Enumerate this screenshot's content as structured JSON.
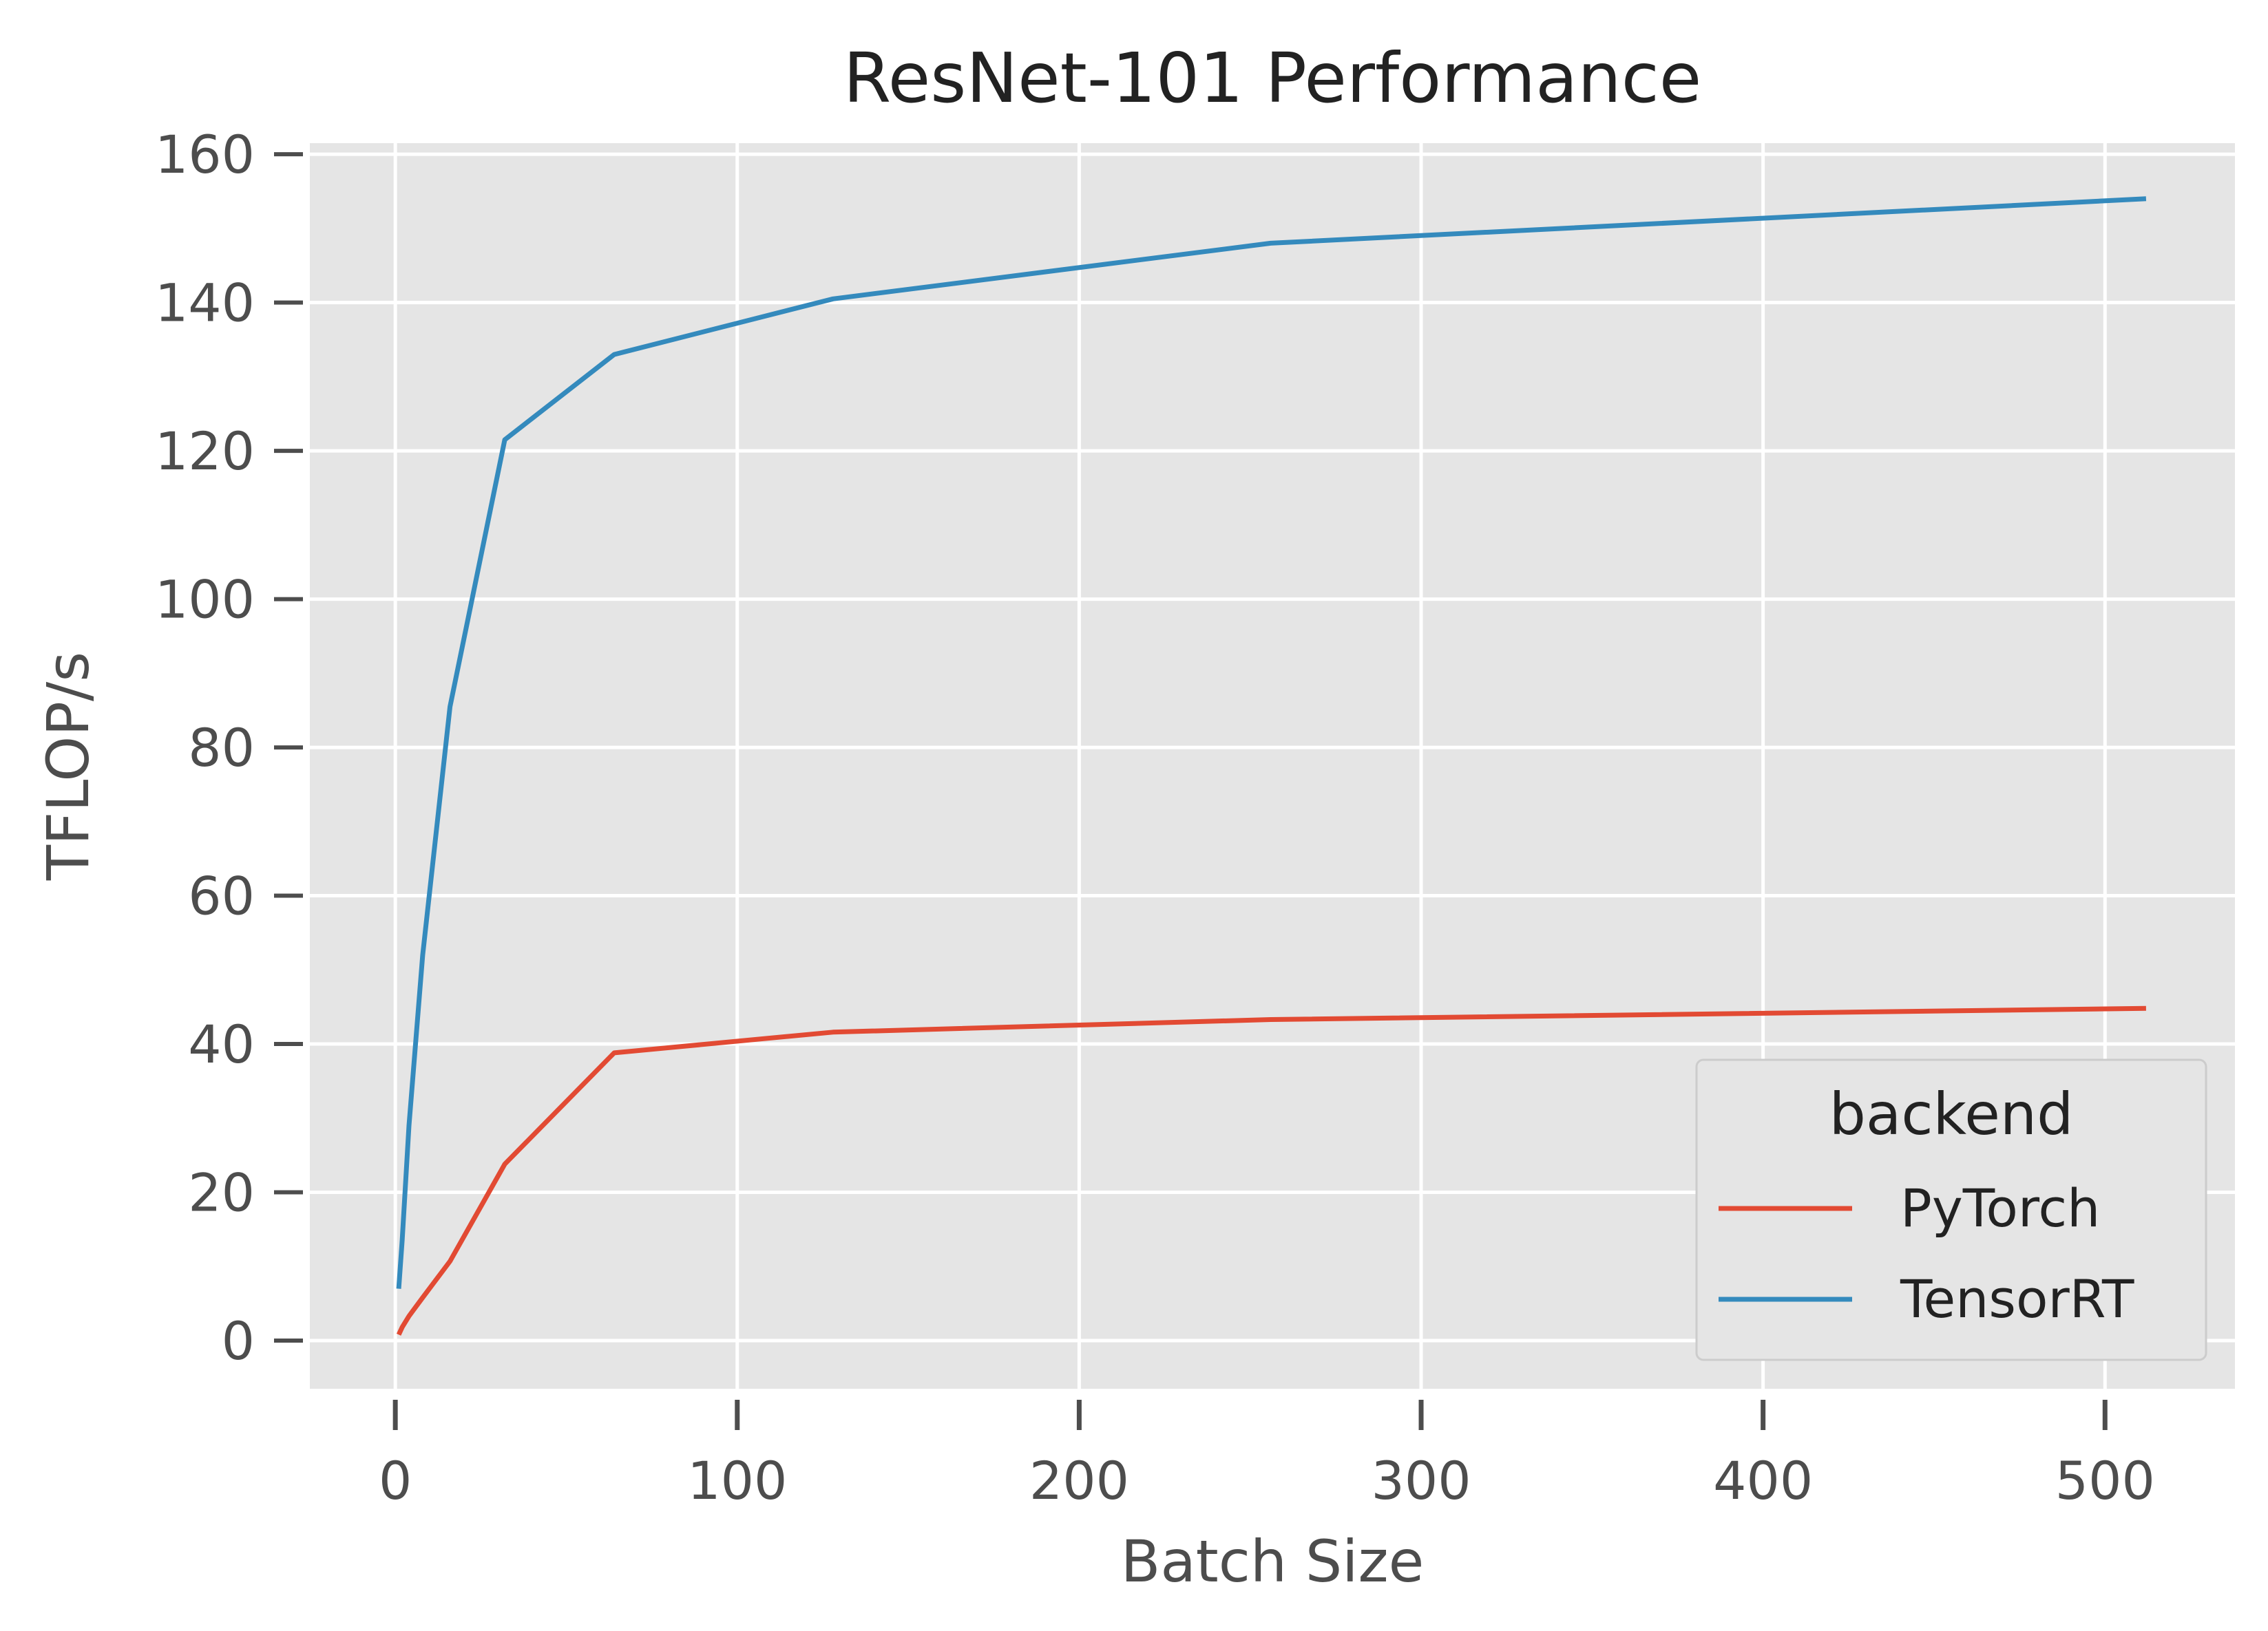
{
  "chart_data": {
    "type": "line",
    "title": "ResNet-101 Performance",
    "xlabel": "Batch Size",
    "ylabel": "TFLOP/s",
    "xlim": [
      -25,
      538
    ],
    "ylim": [
      -6.5,
      161.5
    ],
    "xticks": [
      0,
      100,
      200,
      300,
      400,
      500
    ],
    "yticks": [
      0,
      20,
      40,
      60,
      80,
      100,
      120,
      140,
      160
    ],
    "grid": true,
    "legend": {
      "title": "backend",
      "position": "lower-right"
    },
    "series": [
      {
        "name": "PyTorch",
        "color": "#E24A33",
        "x": [
          1,
          2,
          4,
          8,
          16,
          32,
          64,
          128,
          256,
          512
        ],
        "y": [
          0.8,
          1.8,
          3.3,
          5.8,
          10.7,
          23.8,
          38.8,
          41.6,
          43.3,
          44.8
        ]
      },
      {
        "name": "TensorRT",
        "color": "#348ABD",
        "x": [
          1,
          2,
          4,
          8,
          16,
          32,
          64,
          128,
          256,
          512
        ],
        "y": [
          7.0,
          13.5,
          29.0,
          52.0,
          85.5,
          121.5,
          133.0,
          140.5,
          148.0,
          154.0
        ]
      }
    ]
  }
}
